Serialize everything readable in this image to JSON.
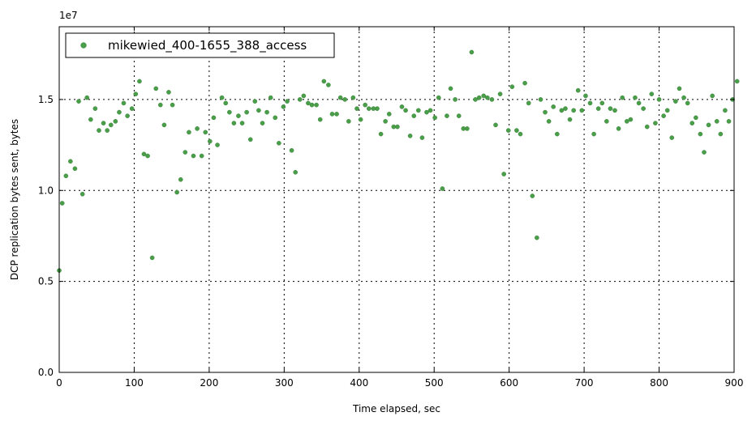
{
  "chart_data": {
    "type": "scatter",
    "xlabel": "Time elapsed, sec",
    "ylabel": "DCP replication bytes sent, bytes",
    "y_exponent_label": "1e7",
    "xlim": [
      0,
      900
    ],
    "ylim": [
      0,
      1.9
    ],
    "x_ticks": [
      "0",
      "100",
      "200",
      "300",
      "400",
      "500",
      "600",
      "700",
      "800",
      "900"
    ],
    "y_ticks": [
      "0.0",
      "0.5",
      "1.0",
      "1.5"
    ],
    "grid": true,
    "legend_position": "top-left",
    "color": "#4a9e4a",
    "series": [
      {
        "name": "mikewied_400-1655_388_access",
        "points": [
          [
            0,
            0.56
          ],
          [
            4,
            0.93
          ],
          [
            9,
            1.08
          ],
          [
            15,
            1.16
          ],
          [
            21,
            1.12
          ],
          [
            26,
            1.49
          ],
          [
            31,
            0.98
          ],
          [
            37,
            1.51
          ],
          [
            42,
            1.39
          ],
          [
            48,
            1.45
          ],
          [
            53,
            1.33
          ],
          [
            59,
            1.37
          ],
          [
            64,
            1.33
          ],
          [
            69,
            1.36
          ],
          [
            75,
            1.38
          ],
          [
            80,
            1.43
          ],
          [
            86,
            1.48
          ],
          [
            91,
            1.41
          ],
          [
            97,
            1.45
          ],
          [
            102,
            1.53
          ],
          [
            107,
            1.6
          ],
          [
            113,
            1.2
          ],
          [
            118,
            1.19
          ],
          [
            124,
            0.63
          ],
          [
            129,
            1.56
          ],
          [
            135,
            1.47
          ],
          [
            140,
            1.36
          ],
          [
            146,
            1.54
          ],
          [
            151,
            1.47
          ],
          [
            157,
            0.99
          ],
          [
            162,
            1.06
          ],
          [
            168,
            1.21
          ],
          [
            173,
            1.32
          ],
          [
            179,
            1.19
          ],
          [
            184,
            1.34
          ],
          [
            190,
            1.19
          ],
          [
            195,
            1.32
          ],
          [
            201,
            1.27
          ],
          [
            206,
            1.4
          ],
          [
            211,
            1.25
          ],
          [
            217,
            1.51
          ],
          [
            222,
            1.48
          ],
          [
            227,
            1.43
          ],
          [
            233,
            1.37
          ],
          [
            239,
            1.41
          ],
          [
            244,
            1.37
          ],
          [
            250,
            1.43
          ],
          [
            255,
            1.28
          ],
          [
            261,
            1.49
          ],
          [
            266,
            1.44
          ],
          [
            271,
            1.37
          ],
          [
            277,
            1.43
          ],
          [
            282,
            1.51
          ],
          [
            288,
            1.4
          ],
          [
            293,
            1.26
          ],
          [
            299,
            1.46
          ],
          [
            304,
            1.49
          ],
          [
            310,
            1.22
          ],
          [
            315,
            1.1
          ],
          [
            321,
            1.5
          ],
          [
            326,
            1.52
          ],
          [
            332,
            1.48
          ],
          [
            337,
            1.47
          ],
          [
            343,
            1.47
          ],
          [
            348,
            1.39
          ],
          [
            353,
            1.6
          ],
          [
            359,
            1.58
          ],
          [
            364,
            1.42
          ],
          [
            370,
            1.42
          ],
          [
            375,
            1.51
          ],
          [
            381,
            1.5
          ],
          [
            386,
            1.38
          ],
          [
            392,
            1.51
          ],
          [
            397,
            1.45
          ],
          [
            402,
            1.39
          ],
          [
            408,
            1.47
          ],
          [
            413,
            1.45
          ],
          [
            419,
            1.45
          ],
          [
            424,
            1.45
          ],
          [
            429,
            1.31
          ],
          [
            435,
            1.38
          ],
          [
            440,
            1.42
          ],
          [
            446,
            1.35
          ],
          [
            451,
            1.35
          ],
          [
            457,
            1.46
          ],
          [
            462,
            1.44
          ],
          [
            468,
            1.3
          ],
          [
            473,
            1.41
          ],
          [
            479,
            1.44
          ],
          [
            484,
            1.29
          ],
          [
            490,
            1.43
          ],
          [
            495,
            1.44
          ],
          [
            501,
            1.4
          ],
          [
            506,
            1.51
          ],
          [
            511,
            1.01
          ],
          [
            517,
            1.41
          ],
          [
            522,
            1.56
          ],
          [
            528,
            1.5
          ],
          [
            533,
            1.41
          ],
          [
            539,
            1.34
          ],
          [
            544,
            1.34
          ],
          [
            550,
            1.76
          ],
          [
            555,
            1.5
          ],
          [
            560,
            1.51
          ],
          [
            566,
            1.52
          ],
          [
            571,
            1.51
          ],
          [
            577,
            1.5
          ],
          [
            582,
            1.36
          ],
          [
            588,
            1.53
          ],
          [
            593,
            1.09
          ],
          [
            599,
            1.33
          ],
          [
            604,
            1.57
          ],
          [
            610,
            1.33
          ],
          [
            615,
            1.31
          ],
          [
            621,
            1.59
          ],
          [
            626,
            1.48
          ],
          [
            631,
            0.97
          ],
          [
            637,
            0.74
          ],
          [
            642,
            1.5
          ],
          [
            648,
            1.43
          ],
          [
            653,
            1.38
          ],
          [
            659,
            1.46
          ],
          [
            664,
            1.31
          ],
          [
            670,
            1.44
          ],
          [
            675,
            1.45
          ],
          [
            681,
            1.39
          ],
          [
            686,
            1.44
          ],
          [
            692,
            1.55
          ],
          [
            697,
            1.44
          ],
          [
            702,
            1.52
          ],
          [
            708,
            1.48
          ],
          [
            713,
            1.31
          ],
          [
            719,
            1.45
          ],
          [
            724,
            1.48
          ],
          [
            730,
            1.38
          ],
          [
            735,
            1.45
          ],
          [
            741,
            1.44
          ],
          [
            746,
            1.34
          ],
          [
            751,
            1.51
          ],
          [
            757,
            1.38
          ],
          [
            762,
            1.39
          ],
          [
            768,
            1.51
          ],
          [
            773,
            1.48
          ],
          [
            779,
            1.45
          ],
          [
            784,
            1.35
          ],
          [
            790,
            1.53
          ],
          [
            795,
            1.37
          ],
          [
            800,
            1.5
          ],
          [
            806,
            1.41
          ],
          [
            811,
            1.44
          ],
          [
            817,
            1.29
          ],
          [
            822,
            1.49
          ],
          [
            827,
            1.56
          ],
          [
            833,
            1.51
          ],
          [
            838,
            1.48
          ],
          [
            844,
            1.37
          ],
          [
            849,
            1.4
          ],
          [
            855,
            1.31
          ],
          [
            860,
            1.21
          ],
          [
            866,
            1.36
          ],
          [
            871,
            1.52
          ],
          [
            877,
            1.38
          ],
          [
            882,
            1.31
          ],
          [
            888,
            1.44
          ],
          [
            893,
            1.38
          ],
          [
            898,
            1.5
          ],
          [
            904,
            1.6
          ]
        ]
      }
    ]
  }
}
